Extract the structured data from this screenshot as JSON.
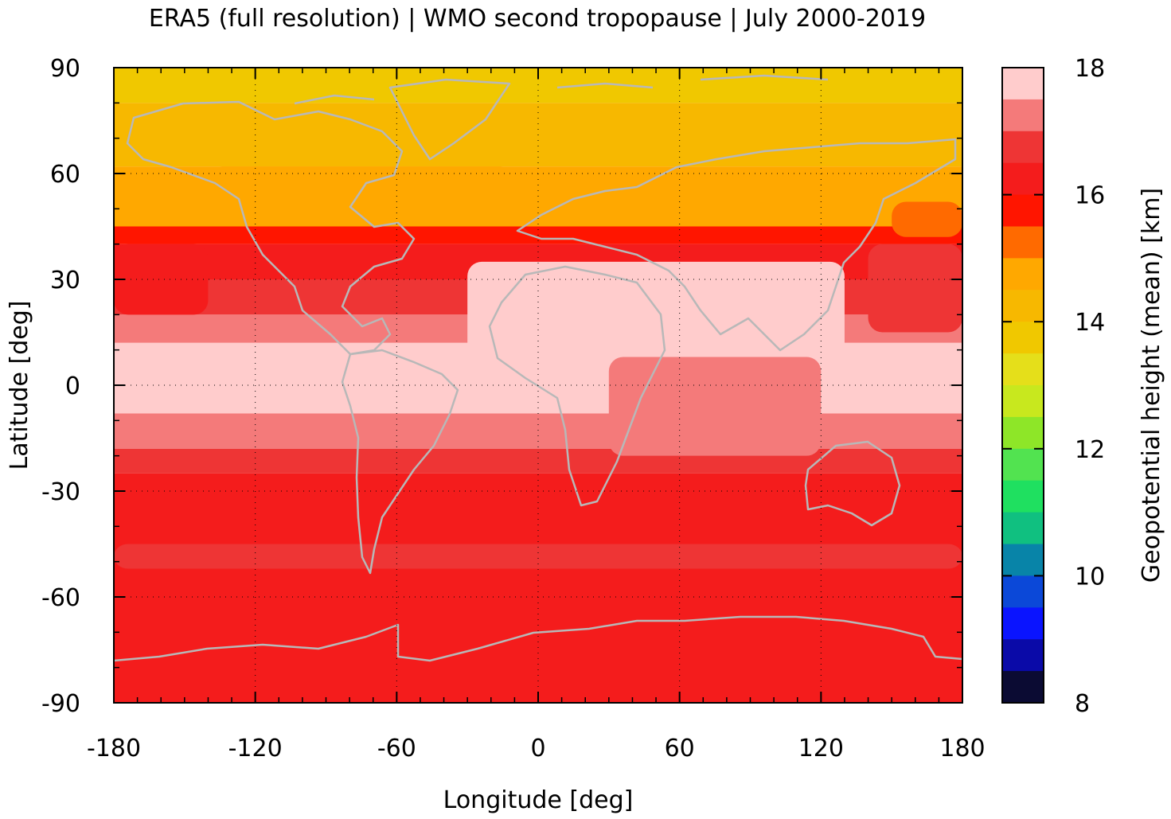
{
  "chart_data": {
    "type": "heatmap",
    "title": "ERA5 (full resolution) | WMO second tropopause | July 2000-2019",
    "xlabel": "Longitude [deg]",
    "ylabel": "Latitude [deg]",
    "colorbar_label": "Geopotential height (mean) [km]",
    "xlim": [
      -180,
      180
    ],
    "ylim": [
      -90,
      90
    ],
    "x_ticks": [
      -180,
      -120,
      -60,
      0,
      60,
      120,
      180
    ],
    "y_ticks": [
      90,
      60,
      30,
      0,
      -30,
      -60,
      -90
    ],
    "colorbar_range": [
      8,
      18
    ],
    "colorbar_ticks": [
      18,
      16,
      14,
      12,
      10,
      8
    ],
    "grid": true,
    "colorbar_levels": [
      {
        "from": 17.5,
        "to": 18.0,
        "color": "#ffcccc"
      },
      {
        "from": 17.0,
        "to": 17.5,
        "color": "#f47a7a"
      },
      {
        "from": 16.5,
        "to": 17.0,
        "color": "#ee3535"
      },
      {
        "from": 16.0,
        "to": 16.5,
        "color": "#f41c1c"
      },
      {
        "from": 15.5,
        "to": 16.0,
        "color": "#ff1500"
      },
      {
        "from": 15.0,
        "to": 15.5,
        "color": "#ff6a00"
      },
      {
        "from": 14.5,
        "to": 15.0,
        "color": "#ffa800"
      },
      {
        "from": 14.0,
        "to": 14.5,
        "color": "#f7b800"
      },
      {
        "from": 13.5,
        "to": 14.0,
        "color": "#f0c800"
      },
      {
        "from": 13.0,
        "to": 13.5,
        "color": "#e5df1a"
      },
      {
        "from": 12.5,
        "to": 13.0,
        "color": "#c8e81e"
      },
      {
        "from": 12.0,
        "to": 12.5,
        "color": "#8ee628"
      },
      {
        "from": 11.5,
        "to": 12.0,
        "color": "#52e350"
      },
      {
        "from": 11.0,
        "to": 11.5,
        "color": "#1fe060"
      },
      {
        "from": 10.5,
        "to": 11.0,
        "color": "#10c080"
      },
      {
        "from": 10.0,
        "to": 10.5,
        "color": "#0884a8"
      },
      {
        "from": 9.5,
        "to": 10.0,
        "color": "#0b48d8"
      },
      {
        "from": 9.0,
        "to": 9.5,
        "color": "#0a14ff"
      },
      {
        "from": 8.5,
        "to": 9.0,
        "color": "#0a0aa8"
      },
      {
        "from": 8.0,
        "to": 8.5,
        "color": "#0b0b33"
      }
    ],
    "zonal_bands": [
      {
        "lat_from": 90,
        "lat_to": 80,
        "value": 13.7
      },
      {
        "lat_from": 80,
        "lat_to": 62,
        "value": 14.0
      },
      {
        "lat_from": 62,
        "lat_to": 45,
        "value": 14.6
      },
      {
        "lat_from": 45,
        "lat_to": 40,
        "value": 15.7
      },
      {
        "lat_from": 40,
        "lat_to": 30,
        "value": 16.2
      },
      {
        "lat_from": 30,
        "lat_to": 20,
        "value": 16.7
      },
      {
        "lat_from": 20,
        "lat_to": 12,
        "value": 17.2
      },
      {
        "lat_from": 12,
        "lat_to": -8,
        "value": 17.7
      },
      {
        "lat_from": -8,
        "lat_to": -18,
        "value": 17.2
      },
      {
        "lat_from": -18,
        "lat_to": -25,
        "value": 16.7
      },
      {
        "lat_from": -25,
        "lat_to": -90,
        "value": 16.2
      }
    ],
    "regions": [
      {
        "lon": [
          -30,
          130
        ],
        "lat": [
          35,
          5
        ],
        "value": 17.7
      },
      {
        "lon": [
          140,
          180
        ],
        "lat": [
          40,
          15
        ],
        "value": 16.7
      },
      {
        "lon": [
          -180,
          -140
        ],
        "lat": [
          40,
          20
        ],
        "value": 16.2
      },
      {
        "lon": [
          30,
          120
        ],
        "lat": [
          8,
          -20
        ],
        "value": 17.2
      },
      {
        "lon": [
          -180,
          180
        ],
        "lat": [
          -45,
          -52
        ],
        "value": 16.7
      },
      {
        "lon": [
          -140,
          -10
        ],
        "lat": [
          62,
          45
        ],
        "value": 14.6
      },
      {
        "lon": [
          150,
          180
        ],
        "lat": [
          52,
          42
        ],
        "value": 15.0
      }
    ],
    "coastline_color": "#b8b8b8"
  }
}
